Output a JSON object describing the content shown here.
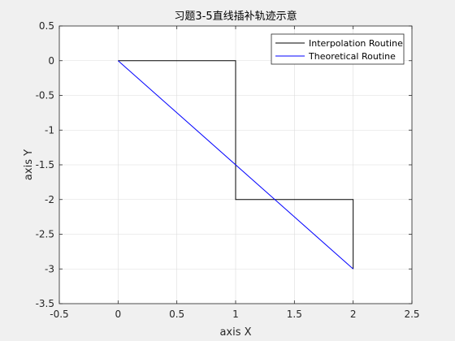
{
  "chart_data": {
    "type": "line",
    "title": "习题3-5直线插补轨迹示意",
    "xlabel": "axis X",
    "ylabel": "axis Y",
    "xlim": [
      -0.5,
      2.5
    ],
    "ylim": [
      -3.5,
      0.5
    ],
    "xticks": [
      -0.5,
      0,
      0.5,
      1,
      1.5,
      2,
      2.5
    ],
    "yticks": [
      -3.5,
      -3,
      -2.5,
      -2,
      -1.5,
      -1,
      -0.5,
      0,
      0.5
    ],
    "xtick_labels": [
      "-0.5",
      "0",
      "0.5",
      "1",
      "1.5",
      "2",
      "2.5"
    ],
    "ytick_labels": [
      "-3.5",
      "-3",
      "-2.5",
      "-2",
      "-1.5",
      "-1",
      "-0.5",
      "0",
      "0.5"
    ],
    "grid": true,
    "legend_position": "top-right",
    "series": [
      {
        "name": "Interpolation Routine",
        "color": "#000000",
        "x": [
          0,
          1,
          1,
          2,
          2
        ],
        "y": [
          0,
          0,
          -2,
          -2,
          -3
        ]
      },
      {
        "name": "Theoretical Routine",
        "color": "#0000ff",
        "x": [
          0,
          2
        ],
        "y": [
          0,
          -3
        ]
      }
    ]
  }
}
